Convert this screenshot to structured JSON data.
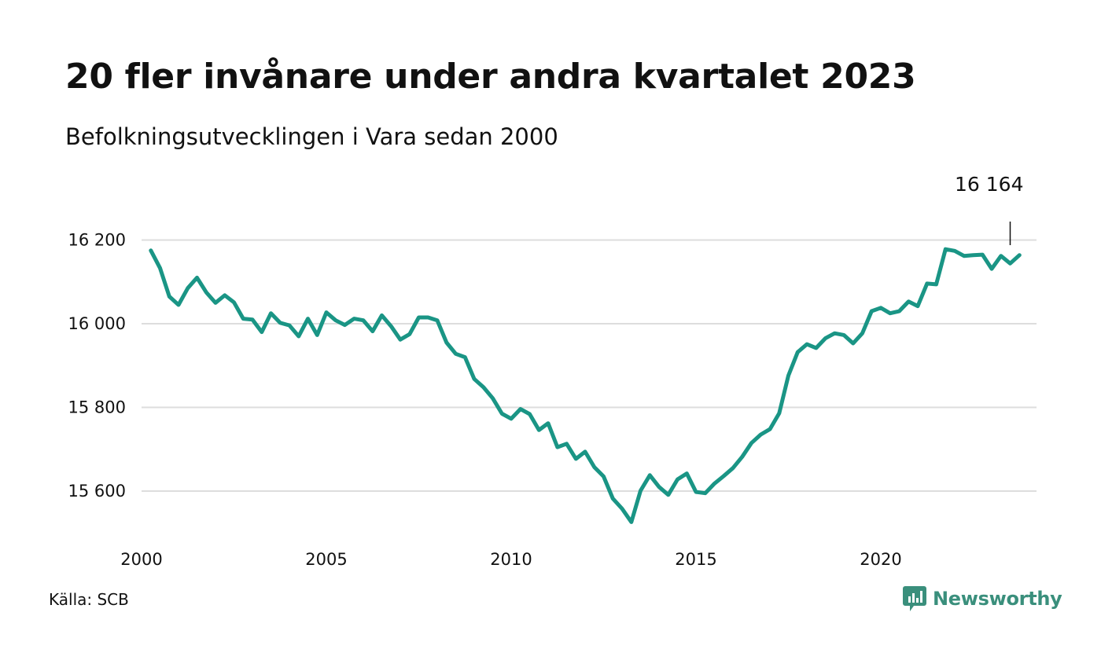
{
  "header": {
    "title": "20 fler invånare under andra kvartalet 2023",
    "subtitle": "Befolkningsutvecklingen i Vara sedan 2000"
  },
  "footer": {
    "source": "Källa: SCB",
    "brand": "Newsworthy"
  },
  "colors": {
    "line": "#1a9585",
    "grid": "#dddddd",
    "brand": "#3a8f7c"
  },
  "chart_data": {
    "type": "line",
    "title": "20 fler invånare under andra kvartalet 2023",
    "subtitle": "Befolkningsutvecklingen i Vara sedan 2000",
    "xlabel": "",
    "ylabel": "",
    "x_unit": "quarter",
    "xlim": [
      2000.0,
      2024.0
    ],
    "ylim": [
      15510,
      16260
    ],
    "x_ticks": [
      {
        "value": 2000,
        "label": "2000"
      },
      {
        "value": 2005,
        "label": "2005"
      },
      {
        "value": 2010,
        "label": "2010"
      },
      {
        "value": 2015,
        "label": "2015"
      },
      {
        "value": 2020,
        "label": "2020"
      }
    ],
    "y_ticks": [
      {
        "value": 15600,
        "label": "15 600"
      },
      {
        "value": 15800,
        "label": "15 800"
      },
      {
        "value": 16000,
        "label": "16 000"
      },
      {
        "value": 16200,
        "label": "16 200"
      }
    ],
    "grid": "horizontal",
    "legend": "none",
    "annotation": {
      "label": "16 164",
      "x": 2023.25,
      "y": 16164
    },
    "series": [
      {
        "start": "2000-Q1",
        "values": [
          16175,
          16133,
          16065,
          16045,
          16085,
          16110,
          16075,
          16050,
          16068,
          16051,
          16012,
          16010,
          15980,
          16025,
          16002,
          15996,
          15970,
          16012,
          15973,
          16027,
          16008,
          15997,
          16012,
          16008,
          15982,
          16020,
          15994,
          15962,
          15975,
          16015,
          16015,
          16008,
          15955,
          15928,
          15920,
          15868,
          15848,
          15822,
          15785,
          15773,
          15796,
          15784,
          15746,
          15762,
          15705,
          15713,
          15677,
          15694,
          15657,
          15635,
          15582,
          15558,
          15526,
          15601,
          15638,
          15610,
          15591,
          15628,
          15642,
          15598,
          15595,
          15618,
          15636,
          15655,
          15682,
          15715,
          15735,
          15748,
          15786,
          15876,
          15932,
          15951,
          15942,
          15965,
          15977,
          15973,
          15953,
          15977,
          16030,
          16038,
          16025,
          16030,
          16053,
          16042,
          16096,
          16094,
          16178,
          16174,
          16162,
          16164,
          16165,
          16131,
          16162,
          16144,
          16164
        ]
      }
    ]
  }
}
